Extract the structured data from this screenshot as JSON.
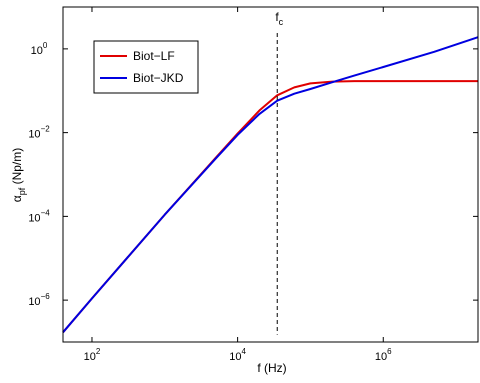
{
  "chart_data": {
    "type": "line",
    "title": "",
    "xlabel": "f (Hz)",
    "ylabel": "α_pf (Np/m)",
    "x_scale": "log",
    "y_scale": "log",
    "xlim": [
      40,
      20000000
    ],
    "ylim": [
      1e-07,
      10
    ],
    "x_ticks": [
      {
        "value": 100,
        "base": "10",
        "exp": "2"
      },
      {
        "value": 10000,
        "base": "10",
        "exp": "4"
      },
      {
        "value": 1000000,
        "base": "10",
        "exp": "6"
      }
    ],
    "y_ticks": [
      {
        "value": 1e-06,
        "base": "10",
        "exp": "−6"
      },
      {
        "value": 0.0001,
        "base": "10",
        "exp": "−4"
      },
      {
        "value": 0.01,
        "base": "10",
        "exp": "−2"
      },
      {
        "value": 1,
        "base": "10",
        "exp": "0"
      }
    ],
    "grid": false,
    "legend": "top-left",
    "annotations": [
      {
        "label": "f",
        "subscript": "c",
        "x": 35000,
        "style": "dashed vertical line"
      }
    ],
    "series": [
      {
        "name": "Biot−LF",
        "color": "#e00000",
        "x": [
          40,
          100,
          1000,
          5000,
          10000,
          20000,
          35000,
          60000,
          100000,
          200000,
          400000,
          1000000,
          5000000,
          20000000
        ],
        "y": [
          1.7e-07,
          1.1e-06,
          0.00011,
          0.0025,
          0.0095,
          0.034,
          0.078,
          0.12,
          0.15,
          0.165,
          0.17,
          0.17,
          0.17,
          0.17
        ]
      },
      {
        "name": "Biot−JKD",
        "color": "#0000e0",
        "x": [
          40,
          100,
          1000,
          5000,
          10000,
          20000,
          35000,
          60000,
          100000,
          200000,
          400000,
          1000000,
          5000000,
          20000000
        ],
        "y": [
          1.7e-07,
          1.1e-06,
          0.00011,
          0.0024,
          0.0088,
          0.028,
          0.058,
          0.085,
          0.11,
          0.16,
          0.23,
          0.37,
          0.85,
          1.9
        ]
      }
    ]
  }
}
